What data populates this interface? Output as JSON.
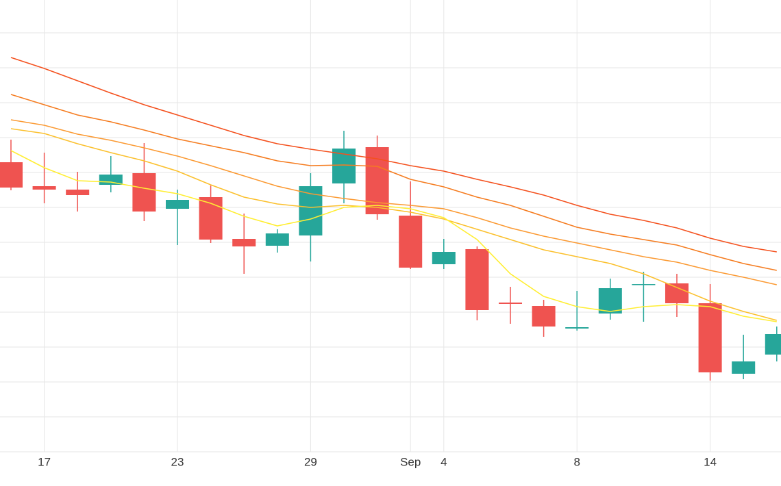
{
  "chart_data": {
    "type": "candlestick",
    "categories": [
      null,
      "17",
      null,
      null,
      null,
      "23",
      null,
      null,
      null,
      "29",
      null,
      null,
      "Sep",
      "4",
      null,
      null,
      null,
      "8",
      null,
      null,
      null,
      "14",
      null,
      null
    ],
    "open": [
      423,
      388,
      383,
      390,
      407,
      355,
      372,
      311,
      301,
      316,
      392,
      445,
      345,
      274,
      296,
      218,
      213,
      180,
      202,
      244,
      246,
      217,
      114,
      142
    ],
    "high": [
      456,
      437,
      409,
      432,
      451,
      383,
      389,
      348,
      325,
      407,
      469,
      462,
      395,
      311,
      300,
      241,
      222,
      235,
      253,
      263,
      260,
      245,
      171,
      183
    ],
    "low": [
      382,
      363,
      351,
      379,
      337,
      302,
      305,
      260,
      291,
      278,
      363,
      339,
      267,
      267,
      192,
      187,
      168,
      177,
      193,
      190,
      197,
      104,
      106,
      132
    ],
    "close": [
      386,
      383,
      375,
      405,
      351,
      368,
      310,
      300,
      319,
      388,
      443,
      347,
      269,
      292,
      207,
      216,
      183,
      182,
      239,
      245,
      217,
      116,
      132,
      172
    ],
    "up_color": "#26a69a",
    "down_color": "#ef5350",
    "series": [
      {
        "color": "#f4511e",
        "values": [
          576,
          560,
          542,
          524,
          507,
          492,
          477,
          462,
          450,
          442,
          435,
          428,
          418,
          410,
          398,
          387,
          375,
          360,
          347,
          338,
          327,
          312,
          300,
          292
        ]
      },
      {
        "color": "#f57c20",
        "values": [
          522,
          507,
          492,
          482,
          470,
          457,
          447,
          437,
          425,
          418,
          419,
          417,
          398,
          387,
          372,
          360,
          344,
          328,
          318,
          310,
          302,
          288,
          275,
          265
        ]
      },
      {
        "color": "#fb9a33",
        "values": [
          485,
          477,
          464,
          455,
          444,
          432,
          418,
          403,
          388,
          377,
          370,
          364,
          360,
          355,
          342,
          327,
          315,
          305,
          295,
          285,
          277,
          265,
          255,
          244
        ]
      },
      {
        "color": "#fbc02d",
        "values": [
          472,
          465,
          450,
          437,
          425,
          410,
          390,
          372,
          362,
          357,
          360,
          357,
          350,
          340,
          325,
          310,
          295,
          285,
          275,
          260,
          240,
          220,
          205,
          192
        ]
      },
      {
        "color": "#ffee33",
        "values": [
          440,
          415,
          396,
          394,
          385,
          377,
          363,
          344,
          330,
          340,
          357,
          360,
          355,
          342,
          310,
          260,
          227,
          212,
          205,
          212,
          215,
          212,
          198,
          190
        ]
      }
    ],
    "ylim": [
      0,
      660
    ],
    "yticks": [
      51,
      102,
      153,
      204,
      255,
      306,
      357,
      408,
      459,
      510,
      561,
      612
    ],
    "grid": true
  }
}
